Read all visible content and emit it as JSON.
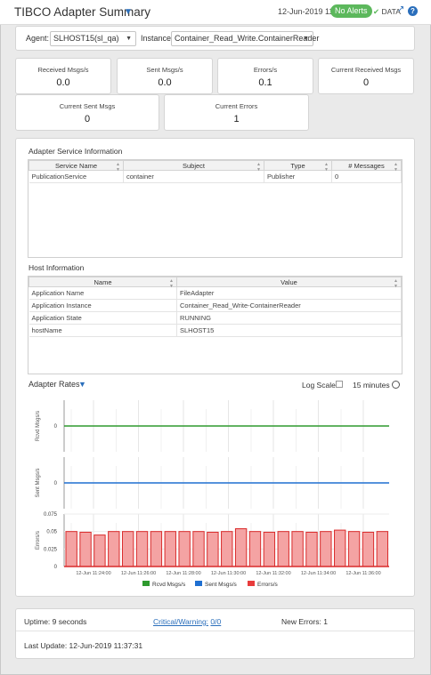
{
  "header": {
    "title": "TIBCO Adapter Summary",
    "timestamp": "12-Jun-2019 11:37",
    "alerts_badge": "No Alerts",
    "data_label": "DATA"
  },
  "filters": {
    "agent_label": "Agent:",
    "agent_value": "SLHOST15(sl_qa)",
    "instance_label": "Instance:",
    "instance_value": "Container_Read_Write.ContainerReader"
  },
  "kpis": [
    {
      "label": "Received Msgs/s",
      "value": "0.0"
    },
    {
      "label": "Sent Msgs/s",
      "value": "0.0"
    },
    {
      "label": "Errors/s",
      "value": "0.1"
    },
    {
      "label": "Current Received Msgs",
      "value": "0"
    },
    {
      "label": "Current Sent Msgs",
      "value": "0"
    },
    {
      "label": "Current Errors",
      "value": "1"
    }
  ],
  "service_info": {
    "title": "Adapter Service Information",
    "columns": [
      "Service Name",
      "Subject",
      "Type",
      "# Messages"
    ],
    "rows": [
      [
        "PublicationService",
        "container",
        "Publisher",
        "0"
      ]
    ]
  },
  "host_info": {
    "title": "Host Information",
    "columns": [
      "Name",
      "Value"
    ],
    "rows": [
      [
        "Application Name",
        "FileAdapter"
      ],
      [
        "Application Instance",
        "Container_Read_Write-ContainerReader"
      ],
      [
        "Application State",
        "RUNNING"
      ],
      [
        "hostName",
        "SLHOST15"
      ]
    ]
  },
  "rates": {
    "title": "Adapter Rates",
    "log_scale_label": "Log Scale:",
    "time_range": "15 minutes"
  },
  "chart_data": {
    "type": "area",
    "x": [
      "12-Jun 11:24:00",
      "12-Jun 11:26:00",
      "12-Jun 11:28:00",
      "12-Jun 11:30:00",
      "12-Jun 11:32:00",
      "12-Jun 11:34:00",
      "12-Jun 11:36:00"
    ],
    "panels": [
      {
        "ylabel": "Rcvd Msgs/s",
        "yticks": [
          "0"
        ],
        "color": "#2e9a2e"
      },
      {
        "ylabel": "Sent Msgs/s",
        "yticks": [
          "0"
        ],
        "color": "#1f6fd1"
      },
      {
        "ylabel": "Errors/s",
        "yticks": [
          "0",
          "0.025",
          "0.05",
          "0.075"
        ],
        "color": "#e83c3c",
        "ylim": [
          0,
          0.075
        ]
      }
    ],
    "series": [
      {
        "name": "Rcvd Msgs/s",
        "values": [
          0,
          0,
          0,
          0,
          0,
          0,
          0
        ]
      },
      {
        "name": "Sent Msgs/s",
        "values": [
          0,
          0,
          0,
          0,
          0,
          0,
          0
        ]
      },
      {
        "name": "Errors/s",
        "pulses": [
          0.05,
          0.049,
          0.045,
          0.05,
          0.05,
          0.05,
          0.05,
          0.05,
          0.05,
          0.05,
          0.049,
          0.05,
          0.054,
          0.05,
          0.049,
          0.05,
          0.05,
          0.049,
          0.05,
          0.052,
          0.05,
          0.049,
          0.05
        ]
      }
    ],
    "legend": [
      "Rcvd Msgs/s",
      "Sent Msgs/s",
      "Errors/s"
    ]
  },
  "footer": {
    "uptime": "Uptime: 9 seconds",
    "critical_label": "Critical/Warning:",
    "critical_value": "0/0",
    "new_errors": "New Errors: 1",
    "last_update": "Last Update: 12-Jun-2019 11:37:31"
  }
}
